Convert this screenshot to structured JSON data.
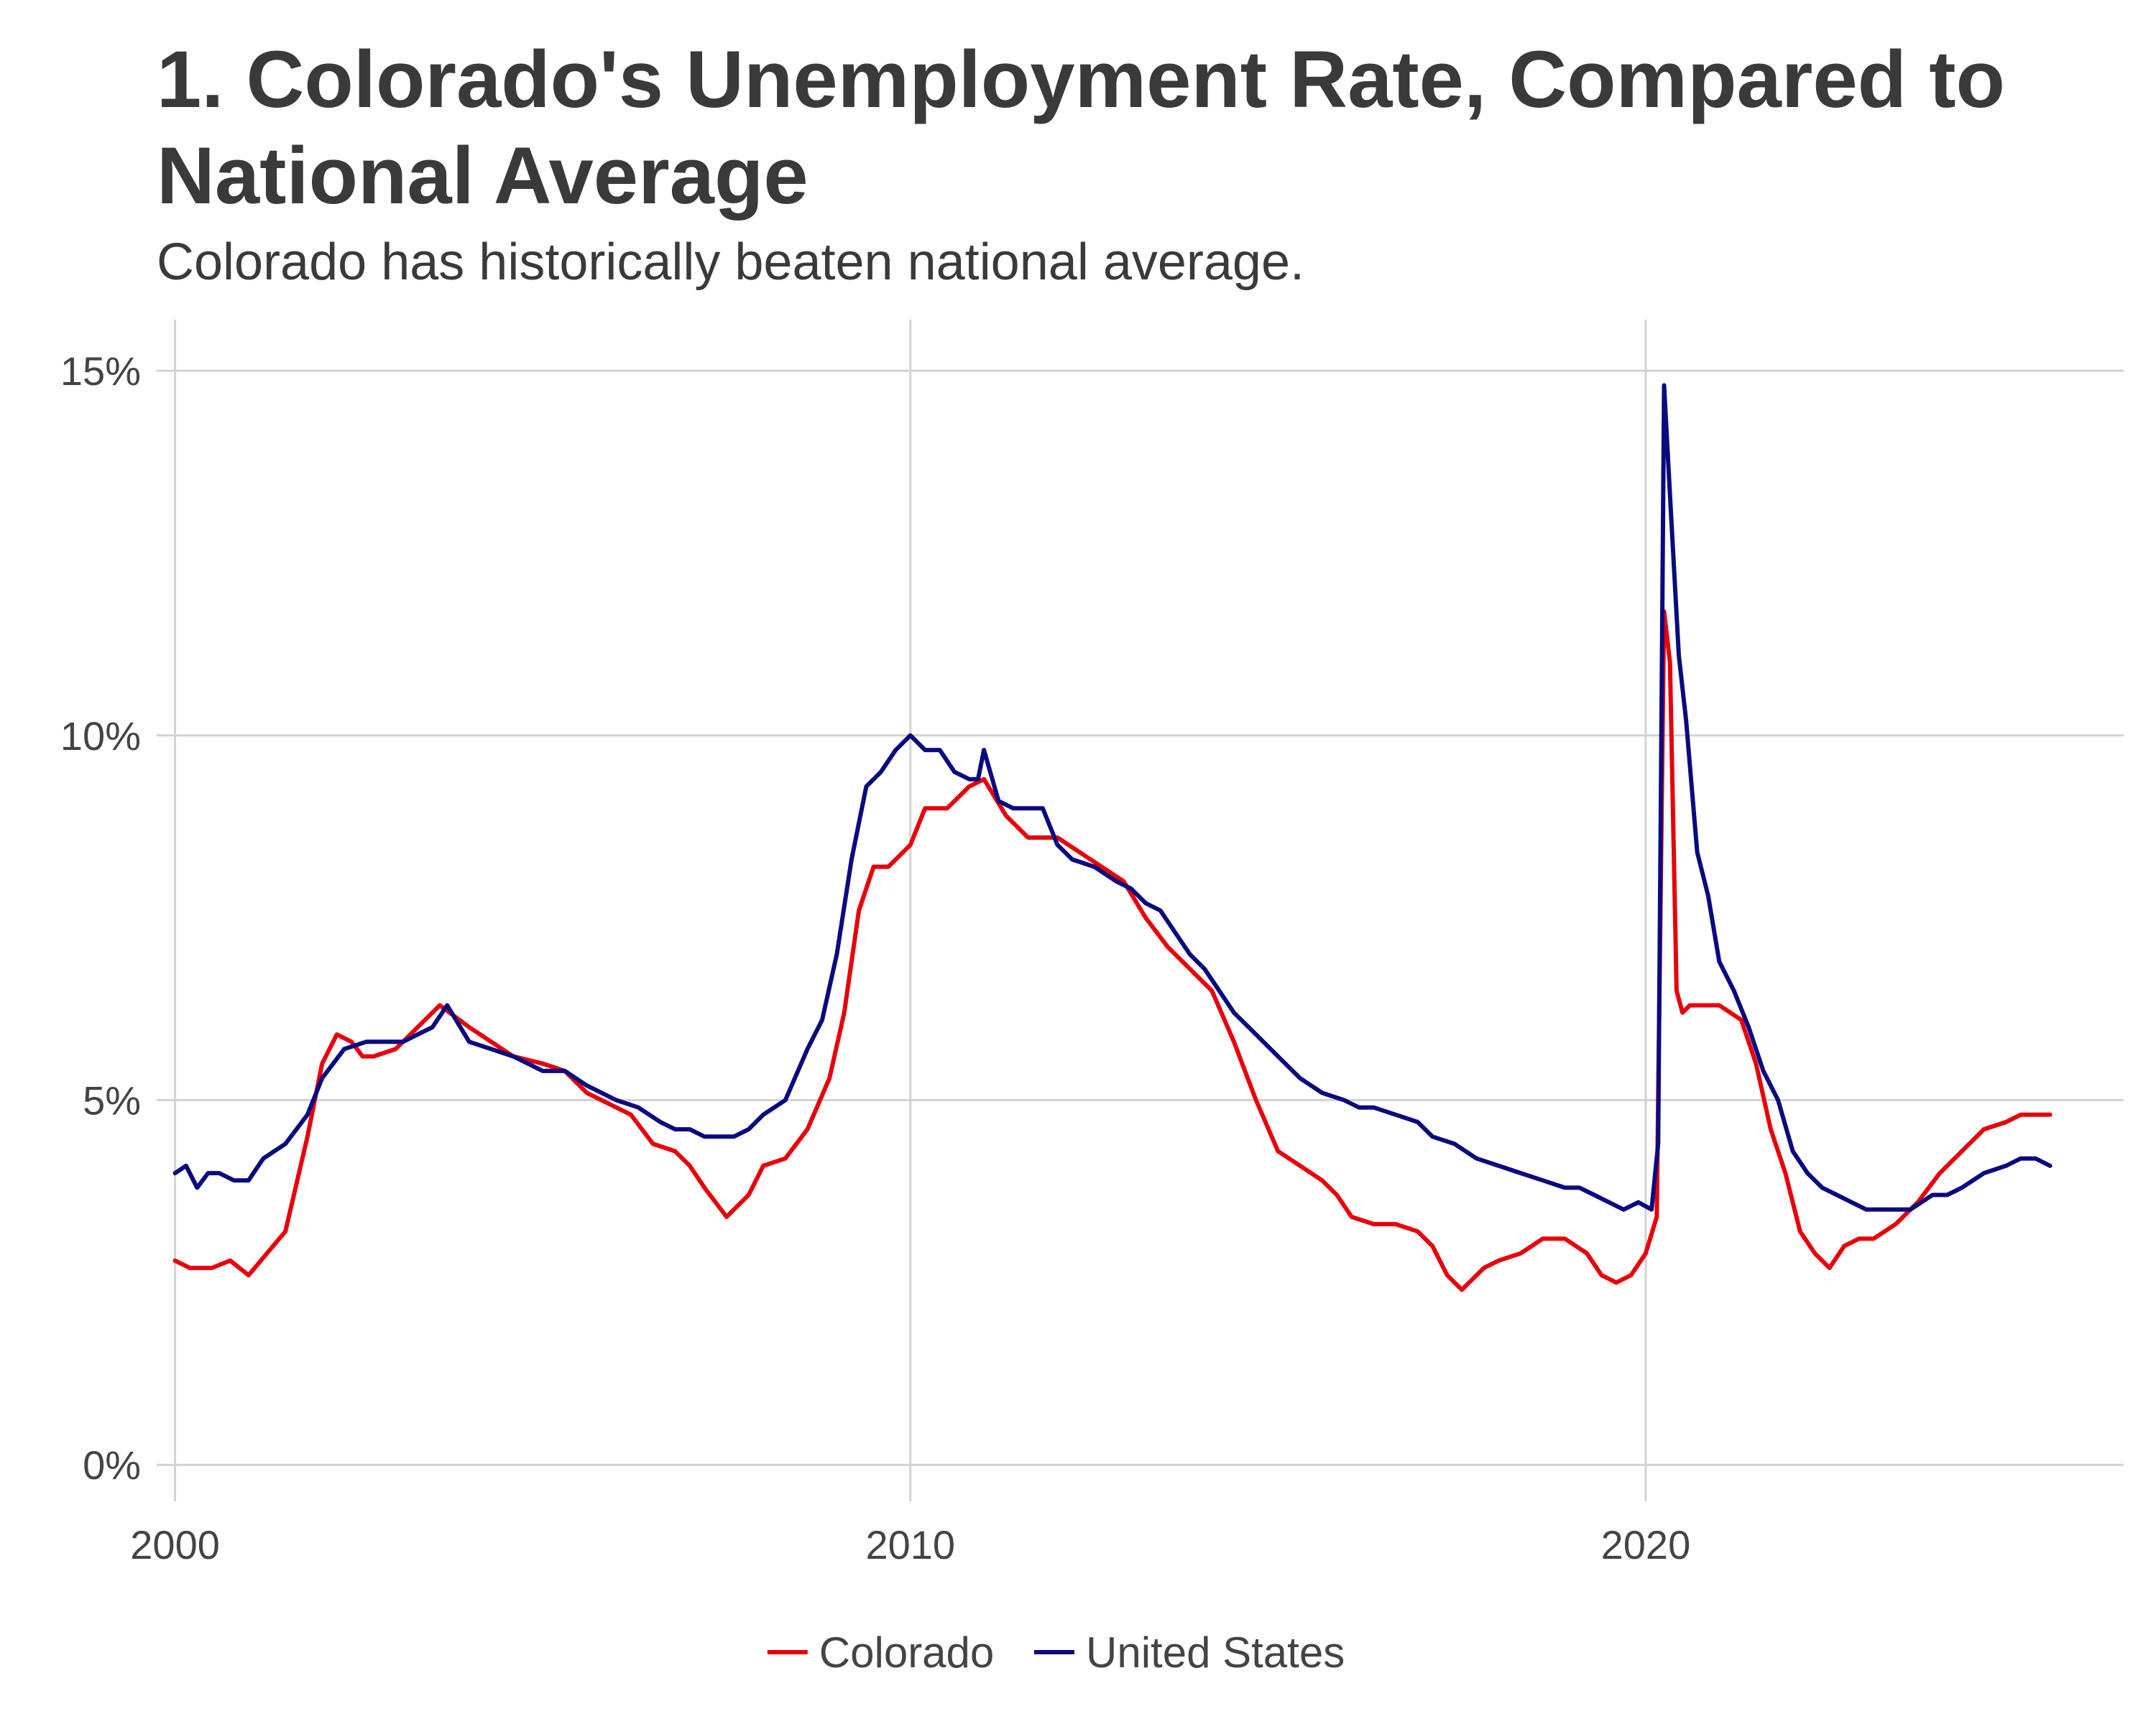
{
  "chart_data": {
    "type": "line",
    "title": "1. Colorado's Unemployment Rate, Compared to National Average",
    "subtitle": "Colorado has historically beaten national average.",
    "xlabel": "",
    "ylabel": "",
    "xlim": [
      1999.75,
      2026.5
    ],
    "ylim": [
      -0.5,
      15.7
    ],
    "x_ticks": [
      2000,
      2010,
      2020
    ],
    "x_tick_labels": [
      "2000",
      "2010",
      "2020"
    ],
    "y_ticks": [
      0,
      5,
      10,
      15
    ],
    "y_tick_labels": [
      "0%",
      "5%",
      "10%",
      "15%"
    ],
    "grid": true,
    "legend_position": "bottom",
    "series": [
      {
        "name": "Colorado",
        "color": "#e8000b",
        "x": [
          2000.0,
          2000.2,
          2000.5,
          2000.75,
          2001.0,
          2001.5,
          2001.8,
          2002.0,
          2002.2,
          2002.4,
          2002.55,
          2002.7,
          2003.0,
          2003.3,
          2003.6,
          2004.0,
          2004.3,
          2004.6,
          2005.0,
          2005.3,
          2005.6,
          2006.0,
          2006.2,
          2006.5,
          2006.8,
          2007.0,
          2007.2,
          2007.5,
          2007.8,
          2008.0,
          2008.3,
          2008.6,
          2008.9,
          2009.1,
          2009.3,
          2009.5,
          2009.7,
          2010.0,
          2010.2,
          2010.5,
          2010.8,
          2011.0,
          2011.3,
          2011.6,
          2012.0,
          2012.3,
          2012.6,
          2012.9,
          2013.2,
          2013.5,
          2013.8,
          2014.1,
          2014.4,
          2014.7,
          2015.0,
          2015.3,
          2015.6,
          2015.8,
          2016.0,
          2016.3,
          2016.6,
          2016.9,
          2017.1,
          2017.3,
          2017.5,
          2017.8,
          2018.0,
          2018.3,
          2018.6,
          2018.9,
          2019.2,
          2019.4,
          2019.6,
          2019.8,
          2020.0,
          2020.15,
          2020.25,
          2020.33,
          2020.42,
          2020.5,
          2020.6,
          2020.8,
          2021.0,
          2021.3,
          2021.5,
          2021.7,
          2021.9,
          2022.1,
          2022.3,
          2022.5,
          2022.7,
          2022.9,
          2023.1,
          2023.4,
          2023.7,
          2024.0,
          2024.3,
          2024.6,
          2024.9,
          2025.1,
          2025.3,
          2025.5
        ],
        "y": [
          2.8,
          2.7,
          2.7,
          2.8,
          2.6,
          3.2,
          4.5,
          5.5,
          5.9,
          5.8,
          5.6,
          5.6,
          5.7,
          6.0,
          6.3,
          6.0,
          5.8,
          5.6,
          5.5,
          5.4,
          5.1,
          4.9,
          4.8,
          4.4,
          4.3,
          4.1,
          3.8,
          3.4,
          3.7,
          4.1,
          4.2,
          4.6,
          5.3,
          6.2,
          7.6,
          8.2,
          8.2,
          8.5,
          9.0,
          9.0,
          9.3,
          9.4,
          8.9,
          8.6,
          8.6,
          8.4,
          8.2,
          8.0,
          7.5,
          7.1,
          6.8,
          6.5,
          5.8,
          5.0,
          4.3,
          4.1,
          3.9,
          3.7,
          3.4,
          3.3,
          3.3,
          3.2,
          3.0,
          2.6,
          2.4,
          2.7,
          2.8,
          2.9,
          3.1,
          3.1,
          2.9,
          2.6,
          2.5,
          2.6,
          2.9,
          3.4,
          11.7,
          11.0,
          6.5,
          6.2,
          6.3,
          6.3,
          6.3,
          6.1,
          5.5,
          4.6,
          4.0,
          3.2,
          2.9,
          2.7,
          3.0,
          3.1,
          3.1,
          3.3,
          3.6,
          4.0,
          4.3,
          4.6,
          4.7,
          4.8,
          4.8,
          4.8
        ]
      },
      {
        "name": "United States",
        "color": "#0a0a80",
        "x": [
          2000.0,
          2000.15,
          2000.3,
          2000.45,
          2000.6,
          2000.8,
          2001.0,
          2001.2,
          2001.5,
          2001.8,
          2002.0,
          2002.3,
          2002.6,
          2002.9,
          2003.1,
          2003.3,
          2003.5,
          2003.7,
          2004.0,
          2004.3,
          2004.6,
          2005.0,
          2005.3,
          2005.6,
          2006.0,
          2006.3,
          2006.6,
          2006.8,
          2007.0,
          2007.2,
          2007.4,
          2007.6,
          2007.8,
          2008.0,
          2008.3,
          2008.6,
          2008.8,
          2009.0,
          2009.2,
          2009.4,
          2009.6,
          2009.8,
          2010.0,
          2010.2,
          2010.4,
          2010.6,
          2010.8,
          2010.92,
          2011.0,
          2011.2,
          2011.4,
          2011.6,
          2011.8,
          2012.0,
          2012.2,
          2012.5,
          2012.8,
          2013.0,
          2013.2,
          2013.4,
          2013.6,
          2013.8,
          2014.0,
          2014.2,
          2014.4,
          2014.7,
          2015.0,
          2015.3,
          2015.6,
          2015.9,
          2016.1,
          2016.3,
          2016.6,
          2016.9,
          2017.1,
          2017.4,
          2017.7,
          2018.0,
          2018.3,
          2018.6,
          2018.9,
          2019.1,
          2019.3,
          2019.5,
          2019.7,
          2019.9,
          2020.08,
          2020.17,
          2020.25,
          2020.33,
          2020.45,
          2020.55,
          2020.7,
          2020.85,
          2021.0,
          2021.2,
          2021.4,
          2021.6,
          2021.8,
          2022.0,
          2022.2,
          2022.4,
          2022.6,
          2022.8,
          2023.0,
          2023.3,
          2023.6,
          2023.9,
          2024.1,
          2024.3,
          2024.6,
          2024.9,
          2025.1,
          2025.3,
          2025.5
        ],
        "y": [
          4.0,
          4.1,
          3.8,
          4.0,
          4.0,
          3.9,
          3.9,
          4.2,
          4.4,
          4.8,
          5.3,
          5.7,
          5.8,
          5.8,
          5.8,
          5.9,
          6.0,
          6.3,
          5.8,
          5.7,
          5.6,
          5.4,
          5.4,
          5.2,
          5.0,
          4.9,
          4.7,
          4.6,
          4.6,
          4.5,
          4.5,
          4.5,
          4.6,
          4.8,
          5.0,
          5.7,
          6.1,
          7.0,
          8.3,
          9.3,
          9.5,
          9.8,
          10.0,
          9.8,
          9.8,
          9.5,
          9.4,
          9.4,
          9.8,
          9.1,
          9.0,
          9.0,
          9.0,
          8.5,
          8.3,
          8.2,
          8.0,
          7.9,
          7.7,
          7.6,
          7.3,
          7.0,
          6.8,
          6.5,
          6.2,
          5.9,
          5.6,
          5.3,
          5.1,
          5.0,
          4.9,
          4.9,
          4.8,
          4.7,
          4.5,
          4.4,
          4.2,
          4.1,
          4.0,
          3.9,
          3.8,
          3.8,
          3.7,
          3.6,
          3.5,
          3.6,
          3.5,
          4.4,
          14.8,
          13.3,
          11.1,
          10.2,
          8.4,
          7.8,
          6.9,
          6.5,
          6.0,
          5.4,
          5.0,
          4.3,
          4.0,
          3.8,
          3.7,
          3.6,
          3.5,
          3.5,
          3.5,
          3.7,
          3.7,
          3.8,
          4.0,
          4.1,
          4.2,
          4.2,
          4.1
        ]
      }
    ]
  }
}
